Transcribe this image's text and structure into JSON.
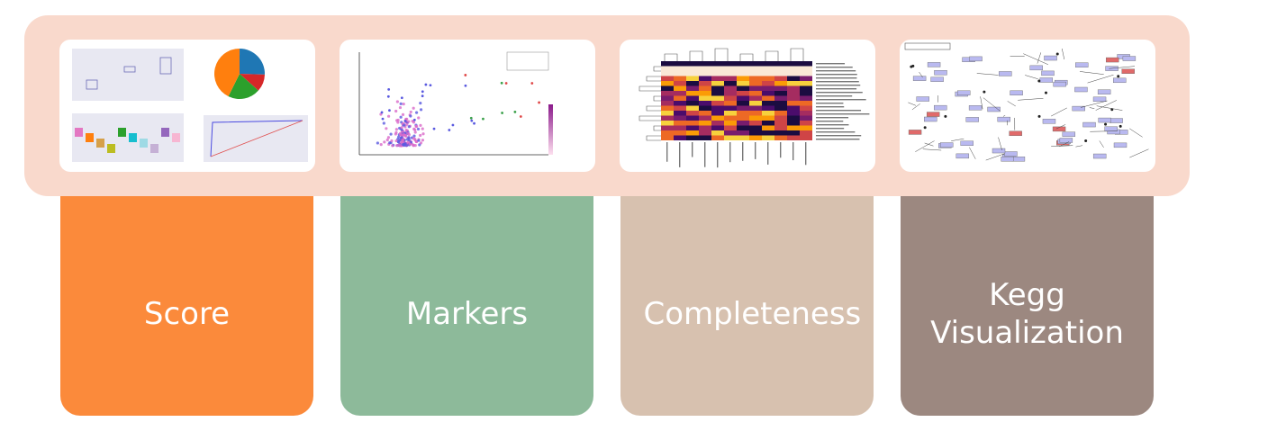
{
  "cards": [
    {
      "label": "Score"
    },
    {
      "label": "Markers"
    },
    {
      "label": "Completeness"
    },
    {
      "label": "Kegg Visualization"
    }
  ]
}
